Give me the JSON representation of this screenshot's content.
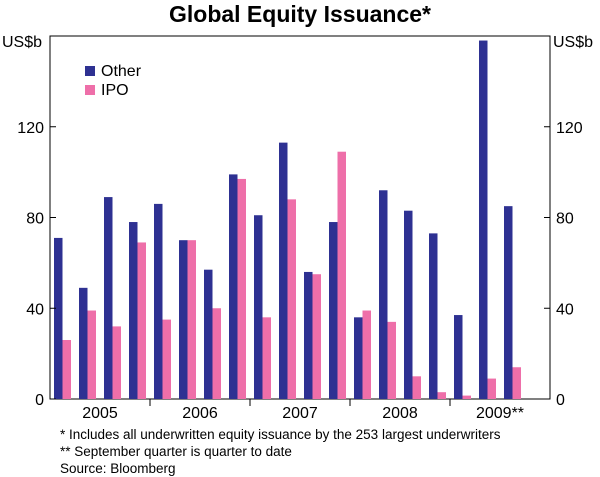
{
  "chart_data": {
    "type": "bar",
    "title": "Global Equity Issuance*",
    "ylabel_left": "US$b",
    "ylabel_right": "US$b",
    "ylim": [
      0,
      160
    ],
    "yticks": [
      0,
      40,
      80,
      120
    ],
    "grid": false,
    "legend_position": "top-left",
    "categories": [
      "2005 Q1",
      "2005 Q2",
      "2005 Q3",
      "2005 Q4",
      "2006 Q1",
      "2006 Q2",
      "2006 Q3",
      "2006 Q4",
      "2007 Q1",
      "2007 Q2",
      "2007 Q3",
      "2007 Q4",
      "2008 Q1",
      "2008 Q2",
      "2008 Q3",
      "2008 Q4",
      "2009 Q1",
      "2009 Q2",
      "2009 Q3"
    ],
    "year_labels": [
      {
        "label": "2005",
        "start_index": 0
      },
      {
        "label": "2006",
        "start_index": 4
      },
      {
        "label": "2007",
        "start_index": 8
      },
      {
        "label": "2008",
        "start_index": 12
      },
      {
        "label": "2009**",
        "start_index": 16
      }
    ],
    "series": [
      {
        "name": "Other",
        "color": "#2E3192",
        "values": [
          71,
          49,
          89,
          78,
          86,
          70,
          57,
          99,
          81,
          113,
          56,
          78,
          36,
          92,
          83,
          73,
          37,
          158,
          85
        ]
      },
      {
        "name": "IPO",
        "color": "#EE6FA9",
        "values": [
          26,
          39,
          32,
          69,
          35,
          70,
          40,
          97,
          36,
          88,
          55,
          109,
          39,
          34,
          10,
          3,
          1.5,
          9,
          14
        ]
      }
    ]
  },
  "notes": {
    "footnote1": "*   Includes all underwritten equity issuance by the 253 largest underwriters",
    "footnote2": "** September quarter is quarter to date",
    "source": "Source: Bloomberg"
  }
}
